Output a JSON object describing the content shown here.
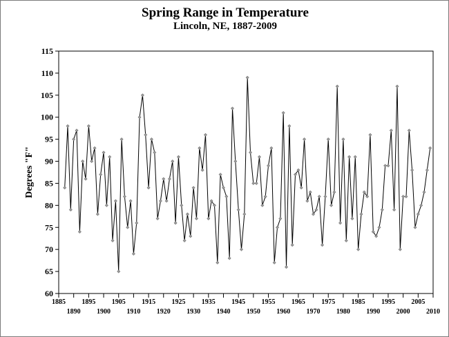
{
  "chart_data": {
    "type": "line",
    "title": "Spring Range in Temperature",
    "subtitle": "Lincoln, NE, 1887-2009",
    "xlabel": "",
    "ylabel": "Degrees \"F\"",
    "xlim": [
      1885,
      2010
    ],
    "ylim": [
      60,
      115
    ],
    "y_ticks": [
      60,
      65,
      70,
      75,
      80,
      85,
      90,
      95,
      100,
      105,
      110,
      115
    ],
    "x_ticks_upper": [
      1885,
      1895,
      1905,
      1915,
      1925,
      1935,
      1945,
      1955,
      1965,
      1975,
      1985,
      1995,
      2005
    ],
    "x_ticks_lower": [
      1890,
      1900,
      1910,
      1920,
      1930,
      1940,
      1950,
      1960,
      1970,
      1980,
      1990,
      2000,
      2010
    ],
    "grid": false,
    "line_color": "#000000",
    "marker_color": "#9a9a9a",
    "series": [
      {
        "x": [
          1887,
          1888,
          1889,
          1890,
          1891,
          1892,
          1893,
          1894,
          1895,
          1896,
          1897,
          1898,
          1899,
          1900,
          1901,
          1902,
          1903,
          1904,
          1905,
          1906,
          1907,
          1908,
          1909,
          1910,
          1911,
          1912,
          1913,
          1914,
          1915,
          1916,
          1917,
          1918,
          1919,
          1920,
          1921,
          1922,
          1923,
          1924,
          1925,
          1926,
          1927,
          1928,
          1929,
          1930,
          1931,
          1932,
          1933,
          1934,
          1935,
          1936,
          1937,
          1938,
          1939,
          1940,
          1941,
          1942,
          1943,
          1944,
          1945,
          1946,
          1947,
          1948,
          1949,
          1950,
          1951,
          1952,
          1953,
          1954,
          1955,
          1956,
          1957,
          1958,
          1959,
          1960,
          1961,
          1962,
          1963,
          1964,
          1965,
          1966,
          1967,
          1968,
          1969,
          1970,
          1971,
          1972,
          1973,
          1974,
          1975,
          1976,
          1977,
          1978,
          1979,
          1980,
          1981,
          1982,
          1983,
          1984,
          1985,
          1986,
          1987,
          1988,
          1989,
          1990,
          1991,
          1992,
          1993,
          1994,
          1995,
          1996,
          1997,
          1998,
          1999,
          2000,
          2001,
          2002,
          2003,
          2004,
          2005,
          2006,
          2007,
          2008,
          2009
        ],
        "values": [
          84,
          98,
          79,
          95,
          97,
          74,
          90,
          86,
          98,
          90,
          93,
          78,
          87,
          92,
          80,
          91,
          72,
          81,
          65,
          95,
          82,
          75,
          81,
          69,
          76,
          100,
          105,
          96,
          84,
          95,
          92,
          77,
          81,
          86,
          81,
          86,
          90,
          76,
          91,
          80,
          72,
          78,
          73,
          84,
          77,
          93,
          88,
          96,
          77,
          81,
          80,
          67,
          87,
          84,
          82,
          68,
          102,
          90,
          79,
          70,
          78,
          109,
          92,
          85,
          85,
          91,
          80,
          82,
          89,
          93,
          67,
          75,
          77,
          101,
          66,
          98,
          71,
          87,
          88,
          84,
          95,
          81,
          83,
          78,
          79,
          82,
          71,
          82,
          95,
          80,
          83,
          107,
          76,
          95,
          72,
          91,
          77,
          91,
          70,
          78,
          83,
          82,
          96,
          74,
          73,
          75,
          79,
          89,
          89,
          97,
          79,
          107,
          70,
          82,
          82,
          97,
          88,
          75,
          78,
          80,
          83,
          88,
          93
        ]
      }
    ]
  }
}
